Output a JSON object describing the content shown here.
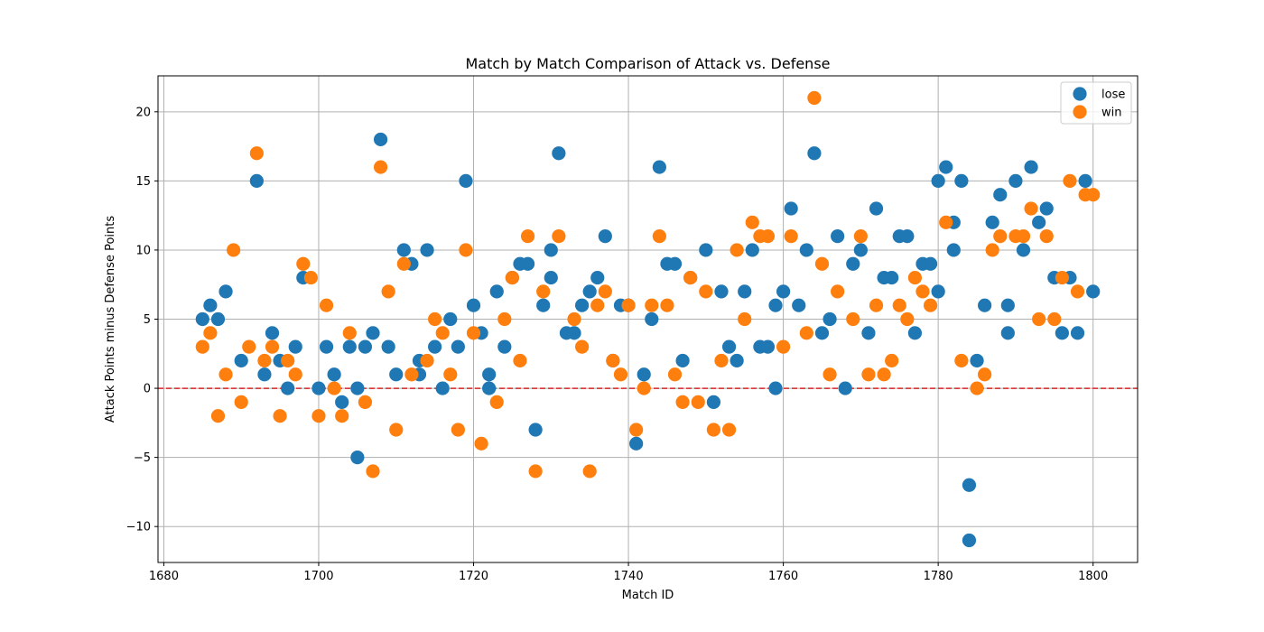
{
  "chart_data": {
    "type": "scatter",
    "title": "Match by Match Comparison of Attack vs. Defense",
    "xlabel": "Match ID",
    "ylabel": "Attack Points minus Defense Points",
    "xlim": [
      1679.25,
      1805.75
    ],
    "ylim": [
      -12.6,
      22.6
    ],
    "xticks": [
      1680,
      1700,
      1720,
      1740,
      1760,
      1780,
      1800
    ],
    "yticks": [
      -10,
      -5,
      0,
      5,
      10,
      15,
      20
    ],
    "grid": true,
    "legend_position": "top-right",
    "reference_line": {
      "y": 0,
      "color": "#d62728",
      "style": "dashed"
    },
    "series": [
      {
        "name": "lose",
        "color": "#1f77b4",
        "x": [
          1685,
          1686,
          1687,
          1688,
          1690,
          1692,
          1693,
          1694,
          1695,
          1696,
          1697,
          1698,
          1700,
          1701,
          1702,
          1703,
          1704,
          1705,
          1705,
          1706,
          1707,
          1708,
          1709,
          1710,
          1711,
          1712,
          1713,
          1713,
          1714,
          1715,
          1716,
          1717,
          1718,
          1719,
          1720,
          1721,
          1722,
          1722,
          1723,
          1724,
          1725,
          1726,
          1727,
          1728,
          1729,
          1730,
          1730,
          1731,
          1732,
          1733,
          1734,
          1735,
          1736,
          1737,
          1738,
          1739,
          1740,
          1741,
          1742,
          1743,
          1744,
          1745,
          1746,
          1747,
          1748,
          1750,
          1751,
          1752,
          1753,
          1754,
          1755,
          1756,
          1757,
          1758,
          1759,
          1759,
          1760,
          1761,
          1762,
          1763,
          1764,
          1765,
          1766,
          1767,
          1768,
          1769,
          1770,
          1771,
          1772,
          1773,
          1774,
          1775,
          1776,
          1777,
          1778,
          1779,
          1780,
          1780,
          1781,
          1782,
          1782,
          1783,
          1784,
          1784,
          1785,
          1786,
          1787,
          1788,
          1789,
          1789,
          1790,
          1791,
          1792,
          1793,
          1794,
          1795,
          1796,
          1797,
          1798,
          1799,
          1800
        ],
        "y": [
          5,
          6,
          5,
          7,
          2,
          15,
          1,
          4,
          2,
          0,
          3,
          8,
          0,
          3,
          1,
          -1,
          3,
          0,
          -5,
          3,
          4,
          18,
          3,
          1,
          10,
          9,
          2,
          1,
          10,
          3,
          0,
          5,
          3,
          15,
          6,
          4,
          1,
          0,
          7,
          3,
          8,
          9,
          9,
          -3,
          6,
          8,
          10,
          17,
          4,
          4,
          6,
          7,
          8,
          11,
          2,
          6,
          6,
          -4,
          1,
          5,
          16,
          9,
          9,
          2,
          8,
          10,
          -1,
          7,
          3,
          2,
          7,
          10,
          3,
          3,
          6,
          0,
          7,
          13,
          6,
          10,
          17,
          4,
          5,
          11,
          0,
          9,
          10,
          4,
          13,
          8,
          8,
          11,
          11,
          4,
          9,
          9,
          15,
          7,
          16,
          12,
          10,
          15,
          -7,
          -11,
          2,
          6,
          12,
          14,
          6,
          4,
          15,
          10,
          16,
          12,
          13,
          8,
          4,
          8,
          4,
          15,
          7
        ]
      },
      {
        "name": "win",
        "color": "#ff7f0e",
        "x": [
          1685,
          1686,
          1687,
          1688,
          1689,
          1690,
          1691,
          1692,
          1693,
          1694,
          1695,
          1696,
          1697,
          1698,
          1699,
          1700,
          1701,
          1702,
          1703,
          1704,
          1706,
          1707,
          1708,
          1709,
          1710,
          1711,
          1712,
          1714,
          1715,
          1716,
          1717,
          1718,
          1719,
          1720,
          1721,
          1723,
          1724,
          1725,
          1726,
          1727,
          1728,
          1729,
          1731,
          1733,
          1734,
          1735,
          1736,
          1737,
          1738,
          1739,
          1740,
          1741,
          1742,
          1743,
          1744,
          1745,
          1746,
          1747,
          1748,
          1749,
          1750,
          1751,
          1752,
          1753,
          1754,
          1755,
          1756,
          1757,
          1758,
          1760,
          1761,
          1763,
          1764,
          1765,
          1766,
          1767,
          1769,
          1770,
          1771,
          1772,
          1773,
          1774,
          1775,
          1776,
          1777,
          1778,
          1779,
          1781,
          1783,
          1785,
          1786,
          1787,
          1788,
          1790,
          1791,
          1792,
          1793,
          1794,
          1795,
          1796,
          1797,
          1798,
          1799,
          1800
        ],
        "y": [
          3,
          4,
          -2,
          1,
          10,
          -1,
          3,
          17,
          2,
          3,
          -2,
          2,
          1,
          9,
          8,
          -2,
          6,
          0,
          -2,
          4,
          -1,
          -6,
          16,
          7,
          -3,
          9,
          1,
          2,
          5,
          4,
          1,
          -3,
          10,
          4,
          -4,
          -1,
          5,
          8,
          2,
          11,
          -6,
          7,
          11,
          5,
          3,
          -6,
          6,
          7,
          2,
          1,
          6,
          -3,
          0,
          6,
          11,
          6,
          1,
          -1,
          8,
          -1,
          7,
          -3,
          2,
          -3,
          10,
          5,
          12,
          11,
          11,
          3,
          11,
          4,
          21,
          9,
          1,
          7,
          5,
          11,
          1,
          6,
          1,
          2,
          6,
          5,
          8,
          7,
          6,
          12,
          2,
          0,
          1,
          10,
          11,
          11,
          11,
          13,
          5,
          11,
          5,
          8,
          15,
          7,
          14,
          14
        ]
      }
    ]
  }
}
